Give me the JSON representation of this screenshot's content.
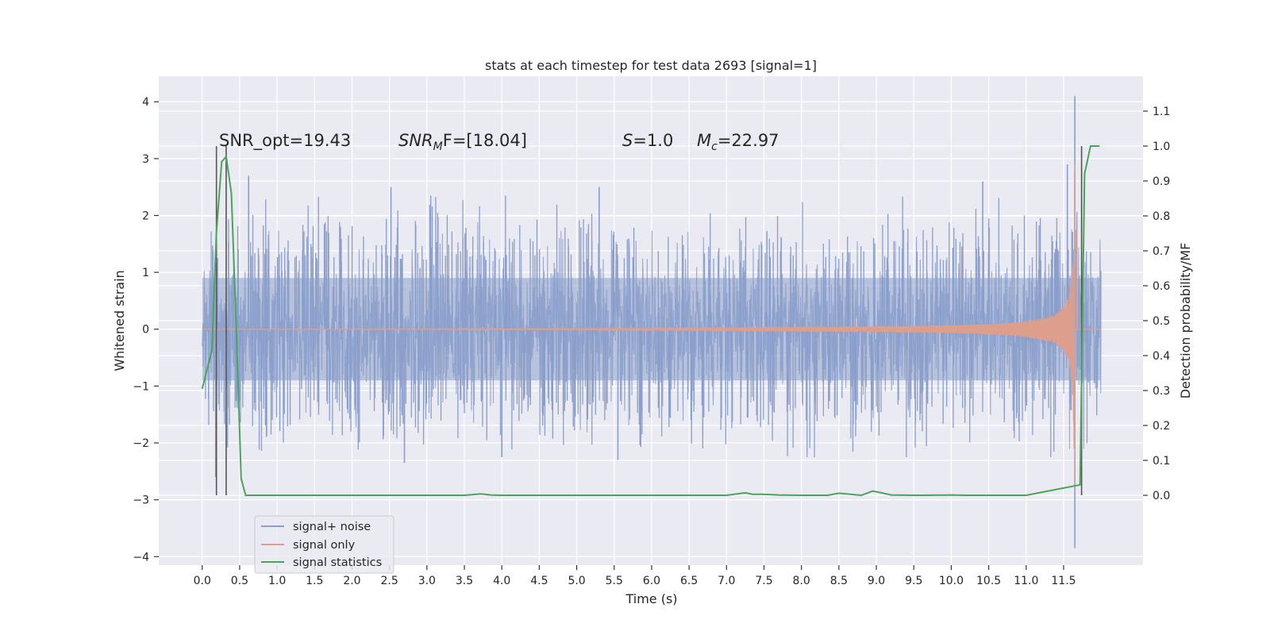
{
  "chart_data": {
    "type": "line",
    "title": "stats at each timestep for test data 2693 [signal=1]",
    "xlabel": "Time (s)",
    "ylabel_left": "Whitened strain",
    "ylabel_right": "Detection probability/MF",
    "xlim": [
      -0.58,
      12.56
    ],
    "ylim_left": [
      -4.15,
      4.45
    ],
    "ylim_right": [
      -0.2,
      1.2
    ],
    "x_ticks": [
      0.0,
      0.5,
      1.0,
      1.5,
      2.0,
      2.5,
      3.0,
      3.5,
      4.0,
      4.5,
      5.0,
      5.5,
      6.0,
      6.5,
      7.0,
      7.5,
      8.0,
      8.5,
      9.0,
      9.5,
      10.0,
      10.5,
      11.0,
      11.5
    ],
    "x_tick_labels": [
      "0.0",
      "0.5",
      "1.0",
      "1.5",
      "2.0",
      "2.5",
      "3.0",
      "3.5",
      "4.0",
      "4.5",
      "5.0",
      "5.5",
      "6.0",
      "6.5",
      "7.0",
      "7.5",
      "8.0",
      "8.5",
      "9.0",
      "9.5",
      "10.0",
      "10.5",
      "11.0",
      "11.5"
    ],
    "y_ticks_left": [
      -4,
      -3,
      -2,
      -1,
      0,
      1,
      2,
      3,
      4
    ],
    "y_tick_labels_left": [
      "−4",
      "−3",
      "−2",
      "−1",
      "0",
      "1",
      "2",
      "3",
      "4"
    ],
    "y_ticks_right": [
      0.0,
      0.1,
      0.2,
      0.3,
      0.4,
      0.5,
      0.6,
      0.7,
      0.8,
      0.9,
      1.0,
      1.1
    ],
    "y_tick_labels_right": [
      "0.0",
      "0.1",
      "0.2",
      "0.3",
      "0.4",
      "0.5",
      "0.6",
      "0.7",
      "0.8",
      "0.9",
      "1.0",
      "1.1"
    ],
    "grid": true,
    "legend_placement": "lower-left",
    "annotations": {
      "snr_opt": "SNR_opt=19.43",
      "snr_mf_name": "SNR",
      "snr_mf_sub": "M",
      "snr_mf_rest": "F=[18.04]",
      "s_name": "S",
      "s_rest": "=1.0",
      "mc_name": "M",
      "mc_sub": "c",
      "mc_rest": "=22.97"
    },
    "vertical_lines": {
      "color": "#555555",
      "x": [
        0.19,
        0.32,
        11.74
      ],
      "y_range_right": [
        0.0,
        1.0
      ]
    },
    "series": [
      {
        "name": "signal+ noise",
        "color": "#8a9ecb",
        "axis": "left",
        "x_range": [
          0.0,
          12.0
        ],
        "envelope_typical": 1.3,
        "peaks": [
          {
            "x": 0.62,
            "y": 2.7
          },
          {
            "x": 2.52,
            "y": 2.5
          },
          {
            "x": 5.3,
            "y": 2.5
          },
          {
            "x": 10.42,
            "y": 2.6
          },
          {
            "x": 11.55,
            "y": 2.9
          },
          {
            "x": 11.65,
            "y": 4.1
          },
          {
            "x": 0.18,
            "y": -2.6
          },
          {
            "x": 2.7,
            "y": -2.35
          },
          {
            "x": 4.0,
            "y": -2.25
          },
          {
            "x": 5.55,
            "y": -2.3
          },
          {
            "x": 11.65,
            "y": -3.85
          }
        ]
      },
      {
        "name": "signal only",
        "color": "#dd9f8c",
        "axis": "left",
        "x_range": [
          0.0,
          12.0
        ],
        "chirp_merger_x": 11.65,
        "chirp_peak_amplitude": 2.9
      },
      {
        "name": "signal statistics",
        "color": "#4ca35a",
        "axis": "right",
        "x": [
          0.0,
          0.13,
          0.19,
          0.26,
          0.32,
          0.39,
          0.46,
          0.52,
          0.58,
          1.0,
          3.5,
          3.72,
          3.85,
          4.0,
          6.5,
          7.0,
          7.25,
          7.35,
          7.5,
          7.7,
          8.0,
          8.35,
          8.5,
          8.6,
          8.8,
          8.95,
          9.05,
          9.2,
          9.6,
          10.0,
          10.2,
          11.0,
          11.72,
          11.78,
          11.86,
          11.92,
          11.98
        ],
        "y": [
          0.305,
          0.415,
          0.755,
          0.955,
          0.97,
          0.865,
          0.45,
          0.048,
          0.0,
          0.0,
          0.0,
          0.004,
          0.001,
          0.0,
          0.0,
          0.0,
          0.007,
          0.003,
          0.003,
          0.001,
          0.0,
          0.0,
          0.006,
          0.004,
          0.0,
          0.012,
          0.008,
          0.001,
          0.0,
          0.001,
          0.0,
          0.0,
          0.03,
          0.92,
          1.0,
          1.0,
          1.0
        ]
      }
    ]
  }
}
